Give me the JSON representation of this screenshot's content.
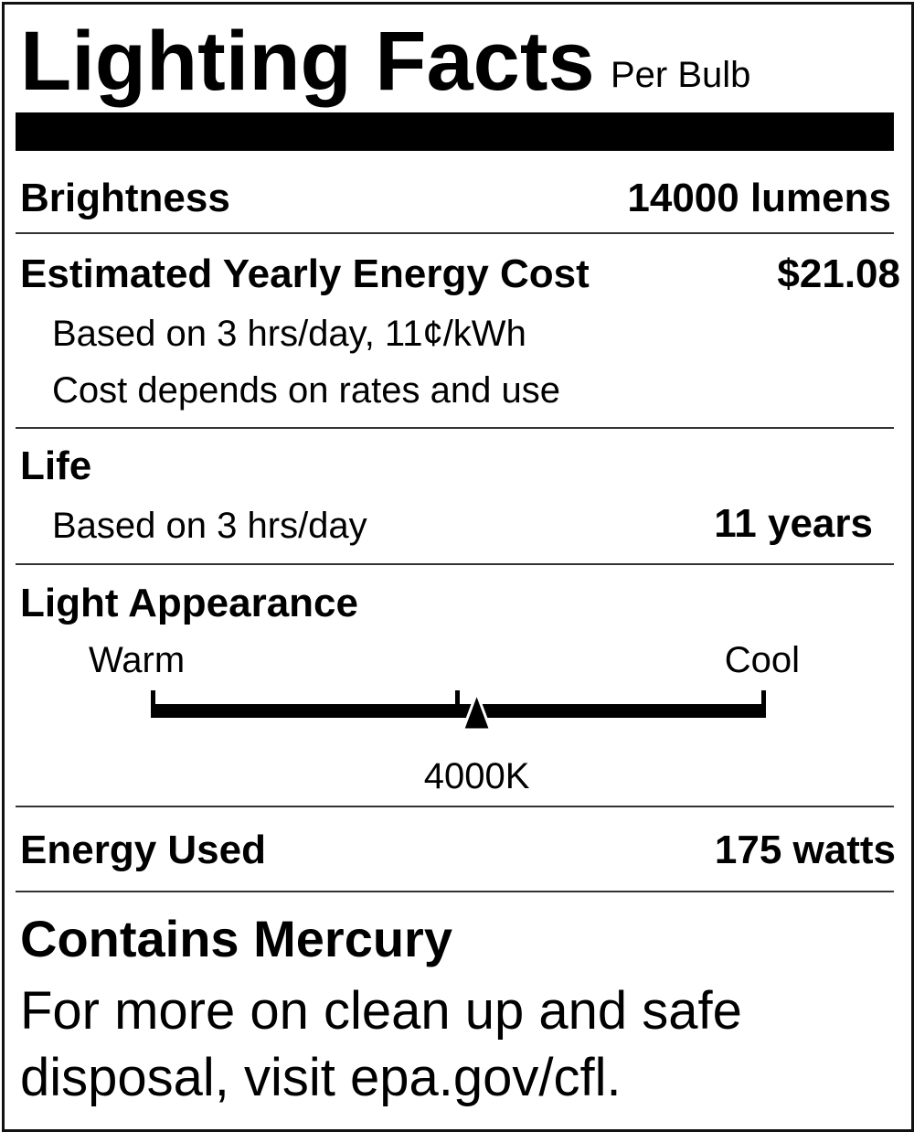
{
  "header": {
    "title": "Lighting Facts",
    "subtitle": "Per Bulb"
  },
  "brightness": {
    "label": "Brightness",
    "value": "14000 lumens"
  },
  "energy_cost": {
    "label": "Estimated Yearly Energy Cost",
    "value": "$21.08",
    "note1": "Based on 3 hrs/day, 11¢/kWh",
    "note2": "Cost depends on rates and use"
  },
  "life": {
    "label": "Life",
    "note": "Based on 3 hrs/day",
    "value": "11 years"
  },
  "light_appearance": {
    "label": "Light Appearance",
    "warm_label": "Warm",
    "cool_label": "Cool",
    "value": "4000K",
    "position_fraction": 0.53
  },
  "energy_used": {
    "label": "Energy Used",
    "value": "175 watts"
  },
  "mercury": {
    "heading": "Contains Mercury",
    "line1": "For more on clean up and safe",
    "line2": "disposal, visit epa.gov/cfl."
  }
}
